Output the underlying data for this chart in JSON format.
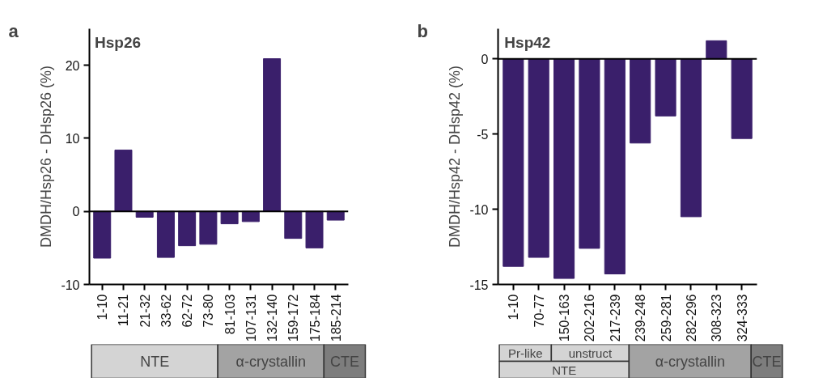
{
  "chart_data": [
    {
      "type": "bar",
      "title": "Hsp26",
      "ylabel": "DMDH/Hsp26 - DHsp26 (%)",
      "categories": [
        "1-10",
        "11-21",
        "21-32",
        "33-62",
        "62-72",
        "73-80",
        "81-103",
        "107-131",
        "132-140",
        "159-172",
        "175-184",
        "185-214"
      ],
      "values": [
        -6.4,
        8.4,
        -0.8,
        -6.3,
        -4.7,
        -4.5,
        -1.7,
        -1.4,
        20.9,
        -3.7,
        -5.0,
        -1.2
      ],
      "color": "#3a1f6b",
      "ylim": [
        -10,
        25
      ],
      "yticks": [
        -10,
        0,
        10,
        20
      ],
      "grid": false,
      "ref_lines": [
        {
          "axis": "y",
          "value": 0
        }
      ],
      "annotations": [
        "a",
        "NTE",
        "α-crystallin",
        "CTE"
      ]
    },
    {
      "type": "bar",
      "title": "Hsp42",
      "ylabel": "DMDH/Hsp42 - DHsp42 (%)",
      "categories": [
        "1-10",
        "70-77",
        "150-163",
        "202-216",
        "217-239",
        "239-248",
        "259-281",
        "282-296",
        "308-323",
        "324-333"
      ],
      "values": [
        -13.8,
        -13.2,
        -14.6,
        -12.6,
        -14.3,
        -5.6,
        -3.8,
        -10.5,
        1.2,
        -5.3
      ],
      "color": "#3a1f6b",
      "ylim": [
        -15,
        2
      ],
      "yticks": [
        -15,
        -10,
        -5,
        0
      ],
      "grid": false,
      "ref_lines": [
        {
          "axis": "y",
          "value": 0
        }
      ],
      "annotations": [
        "b",
        "Pr-like",
        "unstruct",
        "NTE",
        "α-crystallin",
        "CTE"
      ]
    }
  ]
}
